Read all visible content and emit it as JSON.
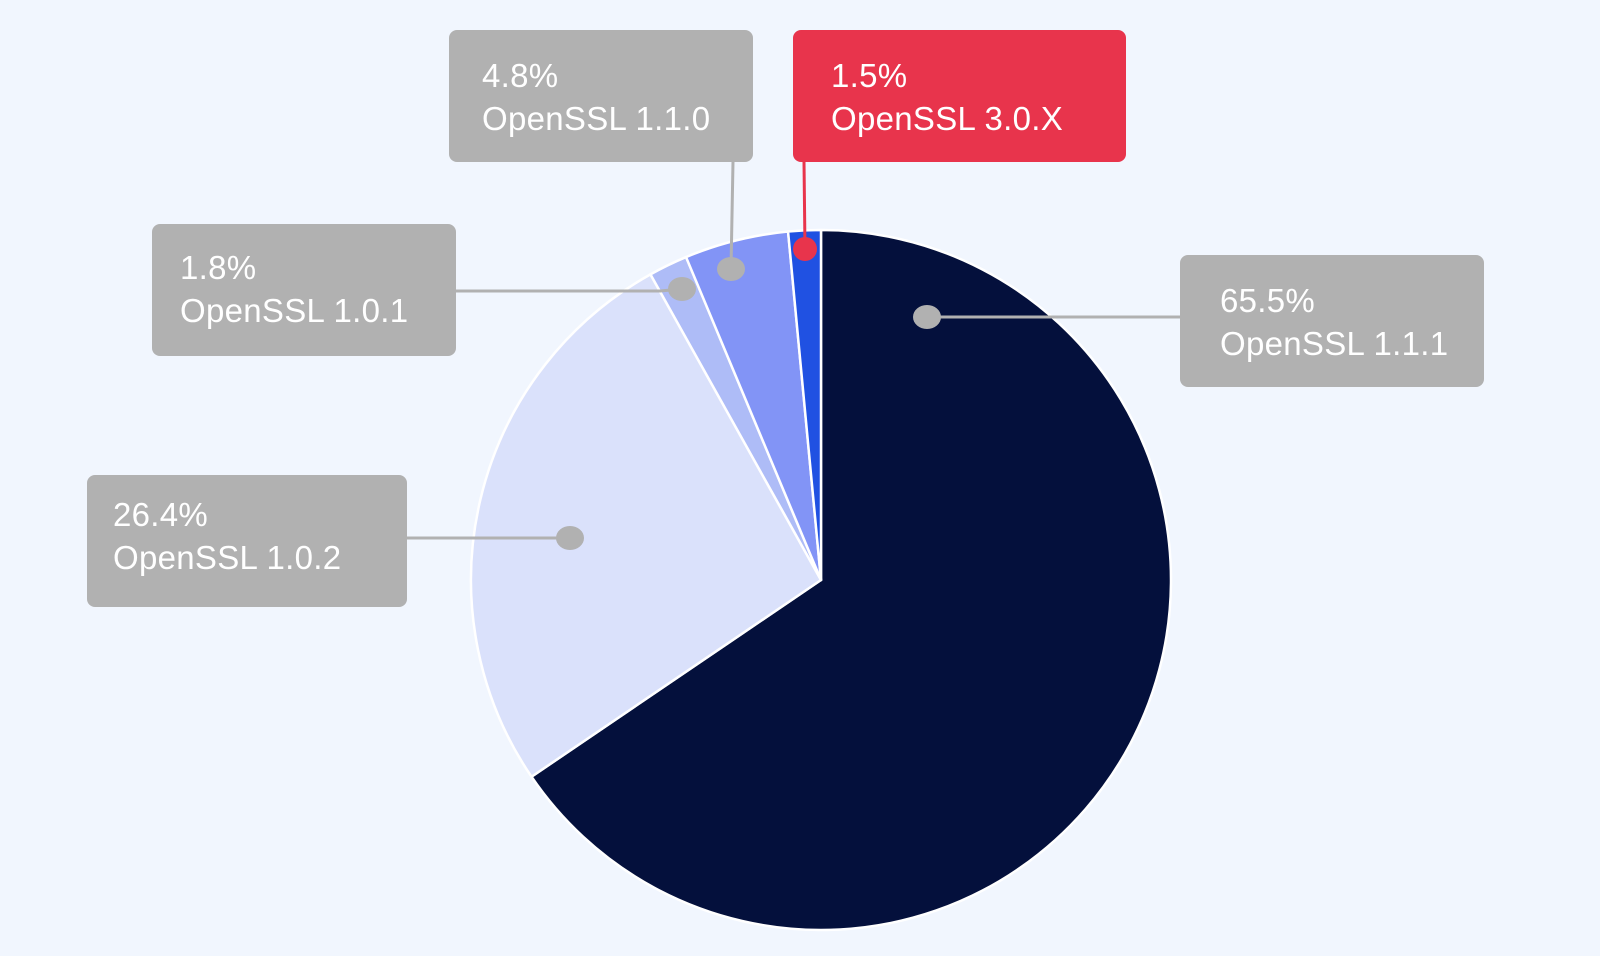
{
  "chart_data": {
    "type": "pie",
    "title": "",
    "start_angle_deg": 0,
    "direction": "clockwise",
    "slices": [
      {
        "label": "OpenSSL 1.1.1",
        "value": 65.5,
        "value_label": "65.5%",
        "color": "#04103c",
        "callout_color": "#b1b1b1"
      },
      {
        "label": "OpenSSL 1.0.2",
        "value": 26.4,
        "value_label": "26.4%",
        "color": "#dae1fb",
        "callout_color": "#b1b1b1"
      },
      {
        "label": "OpenSSL 1.0.1",
        "value": 1.8,
        "value_label": "1.8%",
        "color": "#aebcf7",
        "callout_color": "#b1b1b1"
      },
      {
        "label": "OpenSSL 1.1.0",
        "value": 4.8,
        "value_label": "4.8%",
        "color": "#8294f6",
        "callout_color": "#b1b1b1"
      },
      {
        "label": "OpenSSL 3.0.X",
        "value": 1.5,
        "value_label": "1.5%",
        "color": "#2051e2",
        "callout_color": "#e8344c",
        "highlighted": true
      }
    ],
    "background": "#f1f6fe",
    "slice_border": "#ffffff"
  }
}
